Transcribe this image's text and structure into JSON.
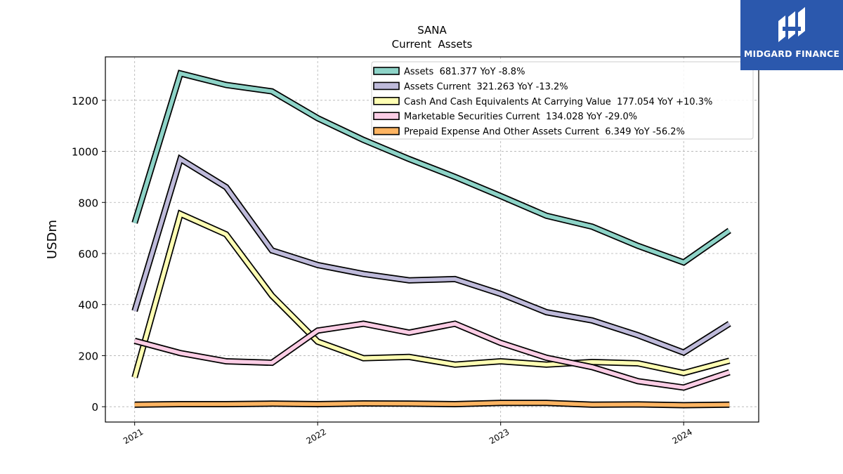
{
  "brand": {
    "name": "MIDGARD FINANCE",
    "color": "#2b58ad"
  },
  "chart_data": {
    "type": "line",
    "title": "SANA",
    "subtitle": "Current  Assets",
    "xlabel": "",
    "ylabel": "USDm",
    "ylim": [
      -60,
      1370
    ],
    "xlim": [
      2020.84,
      2024.41
    ],
    "yticks": [
      0,
      200,
      400,
      600,
      800,
      1000,
      1200
    ],
    "xticks": [
      {
        "value": 2021,
        "label": "2021"
      },
      {
        "value": 2022,
        "label": "2022"
      },
      {
        "value": 2023,
        "label": "2023"
      },
      {
        "value": 2024,
        "label": "2024"
      }
    ],
    "grid": true,
    "legend_position": "top-right",
    "x": [
      2021.0,
      2021.25,
      2021.5,
      2021.75,
      2022.0,
      2022.25,
      2022.5,
      2022.75,
      2023.0,
      2023.25,
      2023.5,
      2023.75,
      2024.0,
      2024.25
    ],
    "series": [
      {
        "name": "Assets",
        "legend": "Assets  681.377 YoY -8.8%",
        "color": "#8dd3c7",
        "values": [
          720,
          1305,
          1260,
          1235,
          1130,
          1045,
          970,
          900,
          825,
          748,
          705,
          630,
          565,
          690
        ]
      },
      {
        "name": "Assets Current",
        "legend": "Assets Current  321.263 YoY -13.2%",
        "color": "#bebada",
        "values": [
          375,
          970,
          860,
          612,
          555,
          520,
          495,
          500,
          442,
          370,
          338,
          280,
          212,
          325
        ]
      },
      {
        "name": "Cash And Cash Equivalents At Carrying Value",
        "legend": "Cash And Cash Equivalents At Carrying Value  177.054 YoY +10.3%",
        "color": "#ffffb3",
        "values": [
          115,
          755,
          675,
          435,
          255,
          190,
          195,
          165,
          178,
          165,
          175,
          170,
          132,
          180
        ]
      },
      {
        "name": "Marketable Securities Current",
        "legend": "Marketable Securities Current  134.028 YoY -29.0%",
        "color": "#fccde5",
        "values": [
          258,
          210,
          178,
          172,
          298,
          325,
          290,
          325,
          250,
          192,
          155,
          100,
          75,
          135
        ]
      },
      {
        "name": "Prepaid Expense And Other Assets Current",
        "legend": "Prepaid Expense And Other Assets Current  6.349 YoY -56.2%",
        "color": "#fdb462",
        "values": [
          8,
          10,
          10,
          12,
          10,
          13,
          12,
          10,
          15,
          15,
          8,
          9,
          6,
          8
        ]
      }
    ]
  }
}
